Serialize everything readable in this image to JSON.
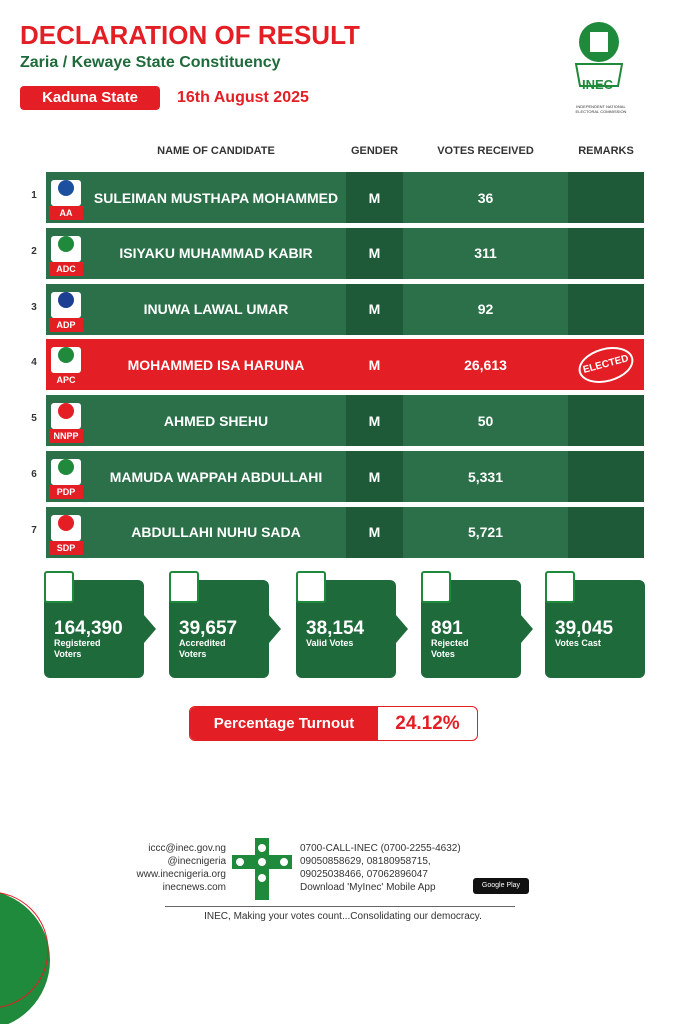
{
  "header": {
    "title": "DECLARATION OF RESULT",
    "subtitle": "Zaria / Kewaye State Constituency",
    "state": "Kaduna State",
    "date": "16th August 2025",
    "logo_text": "INEC",
    "logo_caption": "INDEPENDENT NATIONAL ELECTORAL COMMISSION"
  },
  "table": {
    "columns": [
      "NAME OF CANDIDATE",
      "GENDER",
      "VOTES RECEIVED",
      "REMARKS"
    ],
    "rows": [
      {
        "number": "1",
        "party": "AA",
        "name": "SULEIMAN MUSTHAPA MOHAMMED",
        "gender": "M",
        "votes": "36"
      },
      {
        "number": "2",
        "party": "ADC",
        "name": "ISIYAKU MUHAMMAD KABIR",
        "gender": "M",
        "votes": "311"
      },
      {
        "number": "3",
        "party": "ADP",
        "name": "INUWA LAWAL UMAR",
        "gender": "M",
        "votes": "92"
      },
      {
        "number": "4",
        "party": "APC",
        "name": "MOHAMMED ISA HARUNA",
        "gender": "M",
        "votes": "26,613",
        "remark": "ELECTED"
      },
      {
        "number": "5",
        "party": "NNPP",
        "name": "AHMED SHEHU",
        "gender": "M",
        "votes": "50"
      },
      {
        "number": "6",
        "party": "PDP",
        "name": "MAMUDA WAPPAH ABDULLAHI",
        "gender": "M",
        "votes": "5,331"
      },
      {
        "number": "7",
        "party": "SDP",
        "name": "ABDULLAHI NUHU SADA",
        "gender": "M",
        "votes": "5,721"
      }
    ]
  },
  "stats": [
    {
      "value": "164,390",
      "label": "Registered Voters"
    },
    {
      "value": "39,657",
      "label": "Accredited Voters"
    },
    {
      "value": "38,154",
      "label": "Valid Votes"
    },
    {
      "value": "891",
      "label": "Rejected Votes"
    },
    {
      "value": "39,045",
      "label": "Votes Cast"
    }
  ],
  "turnout": {
    "label": "Percentage Turnout",
    "value": "24.12%"
  },
  "footer": {
    "contacts_left": [
      "iccc@inec.gov.ng",
      "@inecnigeria",
      "www.inecnigeria.org",
      "inecnews.com"
    ],
    "contacts_right": [
      "0700-CALL-INEC (0700-2255-4632)",
      "09050858629, 08180958715,",
      "09025038466, 07062896047",
      "Download 'MyInec' Mobile App"
    ],
    "store": "Google Play",
    "tagline": "INEC, Making your votes count...Consolidating our democracy."
  }
}
